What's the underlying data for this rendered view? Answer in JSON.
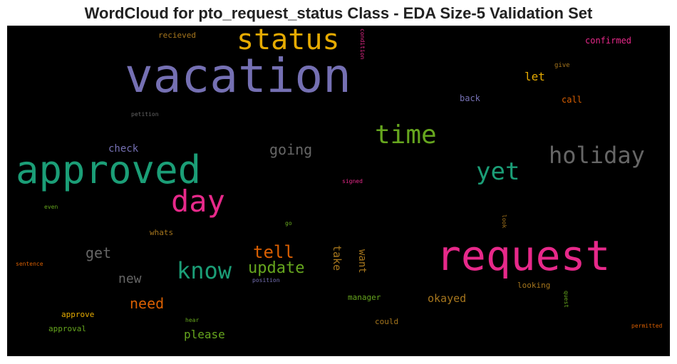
{
  "chart_data": {
    "type": "wordcloud",
    "title": "WordCloud for pto_request_status Class - EDA Size-5 Validation Set",
    "background": "#000000",
    "words": [
      {
        "text": "vacation",
        "color": "#7570b3",
        "orientation": "horizontal"
      },
      {
        "text": "request",
        "color": "#e7298a",
        "orientation": "horizontal"
      },
      {
        "text": "approved",
        "color": "#1b9e77",
        "orientation": "horizontal"
      },
      {
        "text": "status",
        "color": "#e6ab02",
        "orientation": "horizontal"
      },
      {
        "text": "holiday",
        "color": "#666666",
        "orientation": "horizontal"
      },
      {
        "text": "day",
        "color": "#e7298a",
        "orientation": "horizontal"
      },
      {
        "text": "time",
        "color": "#66a61e",
        "orientation": "horizontal"
      },
      {
        "text": "yet",
        "color": "#1b9e77",
        "orientation": "horizontal"
      },
      {
        "text": "know",
        "color": "#1b9e77",
        "orientation": "horizontal"
      },
      {
        "text": "tell",
        "color": "#d95f02",
        "orientation": "horizontal"
      },
      {
        "text": "update",
        "color": "#66a61e",
        "orientation": "horizontal"
      },
      {
        "text": "going",
        "color": "#666666",
        "orientation": "horizontal"
      },
      {
        "text": "get",
        "color": "#666666",
        "orientation": "horizontal"
      },
      {
        "text": "need",
        "color": "#d95f02",
        "orientation": "horizontal"
      },
      {
        "text": "new",
        "color": "#666666",
        "orientation": "horizontal"
      },
      {
        "text": "please",
        "color": "#66a61e",
        "orientation": "horizontal"
      },
      {
        "text": "take",
        "color": "#a6761d",
        "orientation": "vertical"
      },
      {
        "text": "want",
        "color": "#a6761d",
        "orientation": "vertical"
      },
      {
        "text": "let",
        "color": "#e6ab02",
        "orientation": "horizontal"
      },
      {
        "text": "okayed",
        "color": "#a6761d",
        "orientation": "horizontal"
      },
      {
        "text": "check",
        "color": "#7570b3",
        "orientation": "horizontal"
      },
      {
        "text": "confirmed",
        "color": "#e7298a",
        "orientation": "horizontal"
      },
      {
        "text": "call",
        "color": "#d95f02",
        "orientation": "horizontal"
      },
      {
        "text": "back",
        "color": "#7570b3",
        "orientation": "horizontal"
      },
      {
        "text": "recieved",
        "color": "#a6761d",
        "orientation": "horizontal"
      },
      {
        "text": "whats",
        "color": "#a6761d",
        "orientation": "horizontal"
      },
      {
        "text": "manager",
        "color": "#66a61e",
        "orientation": "horizontal"
      },
      {
        "text": "looking",
        "color": "#a6761d",
        "orientation": "horizontal"
      },
      {
        "text": "could",
        "color": "#a6761d",
        "orientation": "horizontal"
      },
      {
        "text": "approve",
        "color": "#e6ab02",
        "orientation": "horizontal"
      },
      {
        "text": "approval",
        "color": "#66a61e",
        "orientation": "horizontal"
      },
      {
        "text": "give",
        "color": "#a6761d",
        "orientation": "horizontal"
      },
      {
        "text": "petition",
        "color": "#666666",
        "orientation": "horizontal"
      },
      {
        "text": "condition",
        "color": "#e7298a",
        "orientation": "vertical"
      },
      {
        "text": "signed",
        "color": "#e7298a",
        "orientation": "horizontal"
      },
      {
        "text": "even",
        "color": "#66a61e",
        "orientation": "horizontal"
      },
      {
        "text": "go",
        "color": "#66a61e",
        "orientation": "horizontal"
      },
      {
        "text": "look",
        "color": "#a6761d",
        "orientation": "vertical"
      },
      {
        "text": "sentence",
        "color": "#d95f02",
        "orientation": "horizontal"
      },
      {
        "text": "position",
        "color": "#7570b3",
        "orientation": "horizontal"
      },
      {
        "text": "quest",
        "color": "#66a61e",
        "orientation": "vertical"
      },
      {
        "text": "hear",
        "color": "#66a61e",
        "orientation": "horizontal"
      },
      {
        "text": "permitted",
        "color": "#d95f02",
        "orientation": "horizontal"
      }
    ]
  }
}
